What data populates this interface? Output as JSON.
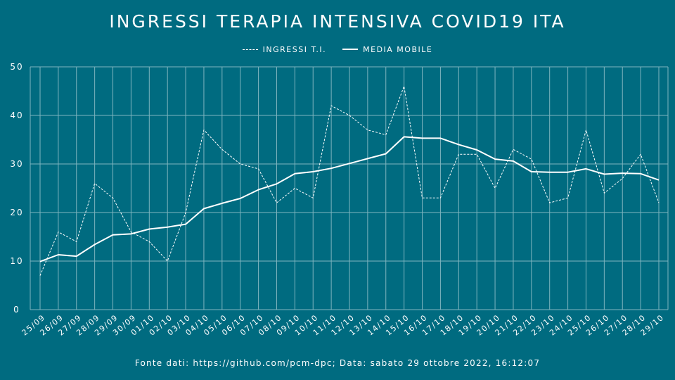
{
  "title": "INGRESSI TERAPIA INTENSIVA COVID19 ITA",
  "legend": {
    "ingressi": "INGRESSI T.I.",
    "media": "MEDIA MOBILE"
  },
  "source": "Fonte dati: https://github.com/pcm-dpc; Data: sabato 29 ottobre 2022, 16:12:07",
  "colors": {
    "background": "#006b80",
    "foreground": "#ffffff",
    "grid": "#7fb5bf"
  },
  "chart_data": {
    "type": "line",
    "title": "INGRESSI TERAPIA INTENSIVA COVID19 ITA",
    "xlabel": "",
    "ylabel": "",
    "ylim": [
      0,
      50
    ],
    "yticks": [
      0,
      10,
      20,
      30,
      40,
      50
    ],
    "grid": true,
    "legend_position": "top-center",
    "categories": [
      "25/09",
      "26/09",
      "27/09",
      "28/09",
      "29/09",
      "30/09",
      "01/10",
      "02/10",
      "03/10",
      "04/10",
      "05/10",
      "06/10",
      "07/10",
      "08/10",
      "09/10",
      "10/10",
      "11/10",
      "12/10",
      "13/10",
      "14/10",
      "15/10",
      "16/10",
      "17/10",
      "18/10",
      "19/10",
      "20/10",
      "21/10",
      "22/10",
      "23/10",
      "24/10",
      "25/10",
      "26/10",
      "27/10",
      "28/10",
      "29/10"
    ],
    "series": [
      {
        "name": "INGRESSI T.I.",
        "style": "dashed",
        "values": [
          7,
          16,
          14,
          26,
          23,
          16,
          14,
          10,
          20,
          37,
          33,
          30,
          29,
          22,
          25,
          23,
          42,
          40,
          37,
          36,
          46,
          23,
          23,
          32,
          32,
          25,
          33,
          31,
          22,
          23,
          37,
          24,
          27,
          32,
          22
        ]
      },
      {
        "name": "MEDIA MOBILE",
        "style": "solid",
        "values": [
          9.9,
          11.3,
          11.0,
          13.4,
          15.4,
          15.6,
          16.6,
          17.0,
          17.6,
          20.8,
          21.9,
          22.9,
          24.7,
          25.9,
          28.0,
          28.4,
          29.1,
          30.1,
          31.1,
          32.1,
          35.6,
          35.3,
          35.3,
          34.0,
          32.9,
          31.0,
          30.6,
          28.4,
          28.3,
          28.3,
          29.0,
          27.9,
          28.1,
          28.0,
          26.7
        ]
      }
    ]
  }
}
